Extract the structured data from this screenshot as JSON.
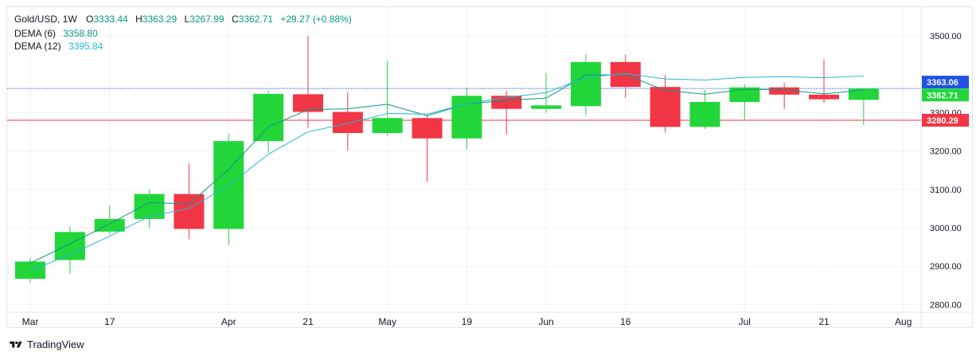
{
  "legend": {
    "symbol": "Gold/USD, 1W",
    "o_label": "O",
    "o_value": "3333.44",
    "h_label": "H",
    "h_value": "3363.29",
    "l_label": "L",
    "l_value": "3267.99",
    "c_label": "C",
    "c_value": "3362.71",
    "change": "+29.27 (+0.88%)",
    "dema_fast_label": "DEMA (6)",
    "dema_fast_value": "3358.80",
    "dema_slow_label": "DEMA (12)",
    "dema_slow_value": "3395.84"
  },
  "brand": {
    "name": "TradingView",
    "logo_icon": "tradingview-logo-icon"
  },
  "colors": {
    "up": "#22d63a",
    "down": "#f23645",
    "up_text": "#089981",
    "dema_fast": "#089981",
    "dema_slow": "#22b8d8",
    "price_line": "#f23645",
    "crosshair": "#1e53e5",
    "grid": "#f0f3fa"
  },
  "chart_data": {
    "type": "candlestick",
    "symbol": "Gold/USD",
    "timeframe": "1W",
    "ylim": [
      2780,
      3575
    ],
    "y_ticks": [
      2800,
      2900,
      3000,
      3100,
      3200,
      3300,
      3500
    ],
    "y_tick_labels": [
      "2800.00",
      "2900.00",
      "3000.00",
      "3100.00",
      "3200.00",
      "3300.00",
      "3500.00"
    ],
    "x_ticks": [
      {
        "label": "Mar",
        "index": 0
      },
      {
        "label": "17",
        "index": 2
      },
      {
        "label": "Apr",
        "index": 5
      },
      {
        "label": "21",
        "index": 7
      },
      {
        "label": "May",
        "index": 9
      },
      {
        "label": "19",
        "index": 11
      },
      {
        "label": "Jun",
        "index": 13
      },
      {
        "label": "16",
        "index": 15
      },
      {
        "label": "Jul",
        "index": 18
      },
      {
        "label": "21",
        "index": 20
      },
      {
        "label": "Aug",
        "index": 22
      }
    ],
    "candles": [
      {
        "o": 2867,
        "h": 2923,
        "l": 2857,
        "c": 2912
      },
      {
        "o": 2916,
        "h": 3004,
        "l": 2880,
        "c": 2989
      },
      {
        "o": 2990,
        "h": 3057,
        "l": 2983,
        "c": 3023
      },
      {
        "o": 3023,
        "h": 3100,
        "l": 2999,
        "c": 3088
      },
      {
        "o": 3088,
        "h": 3168,
        "l": 2970,
        "c": 2997
      },
      {
        "o": 2997,
        "h": 3245,
        "l": 2956,
        "c": 3226
      },
      {
        "o": 3226,
        "h": 3357,
        "l": 3195,
        "c": 3349
      },
      {
        "o": 3348,
        "h": 3500,
        "l": 3260,
        "c": 3302
      },
      {
        "o": 3302,
        "h": 3353,
        "l": 3201,
        "c": 3247
      },
      {
        "o": 3247,
        "h": 3435,
        "l": 3240,
        "c": 3286
      },
      {
        "o": 3286,
        "h": 3292,
        "l": 3120,
        "c": 3233
      },
      {
        "o": 3233,
        "h": 3365,
        "l": 3205,
        "c": 3344
      },
      {
        "o": 3344,
        "h": 3358,
        "l": 3243,
        "c": 3310
      },
      {
        "o": 3310,
        "h": 3403,
        "l": 3300,
        "c": 3319
      },
      {
        "o": 3317,
        "h": 3452,
        "l": 3293,
        "c": 3432
      },
      {
        "o": 3432,
        "h": 3451,
        "l": 3339,
        "c": 3367
      },
      {
        "o": 3367,
        "h": 3398,
        "l": 3248,
        "c": 3263
      },
      {
        "o": 3263,
        "h": 3360,
        "l": 3258,
        "c": 3328
      },
      {
        "o": 3328,
        "h": 3374,
        "l": 3282,
        "c": 3366
      },
      {
        "o": 3366,
        "h": 3378,
        "l": 3310,
        "c": 3347
      },
      {
        "o": 3347,
        "h": 3439,
        "l": 3326,
        "c": 3335
      },
      {
        "o": 3333.44,
        "h": 3363.29,
        "l": 3267.99,
        "c": 3362.71
      }
    ],
    "series": [
      {
        "name": "DEMA (6)",
        "values": [
          2908,
          2958,
          3010,
          3066,
          3062,
          3152,
          3263,
          3308,
          3310,
          3322,
          3292,
          3323,
          3332,
          3338,
          3398,
          3399,
          3358,
          3348,
          3361,
          3360,
          3349,
          3358.8
        ]
      },
      {
        "name": "DEMA (12)",
        "values": [
          2888,
          2930,
          2978,
          3030,
          3050,
          3110,
          3192,
          3250,
          3272,
          3298,
          3296,
          3323,
          3340,
          3352,
          3392,
          3402,
          3388,
          3385,
          3392,
          3394,
          3391,
          3395.84
        ]
      }
    ],
    "axis_labels": [
      {
        "label": "3363.06",
        "value": 3363.06,
        "color": "#1e53e5"
      },
      {
        "label": "3362.71",
        "value": 3362.71,
        "color": "#22d63a"
      },
      {
        "label": "3280.29",
        "value": 3280.29,
        "color": "#f23645"
      }
    ],
    "horizontal_lines": [
      {
        "value": 3363.06,
        "color": "#1e53e5",
        "style": "dotted"
      },
      {
        "value": 3280.29,
        "color": "#f23645",
        "style": "solid"
      }
    ]
  }
}
